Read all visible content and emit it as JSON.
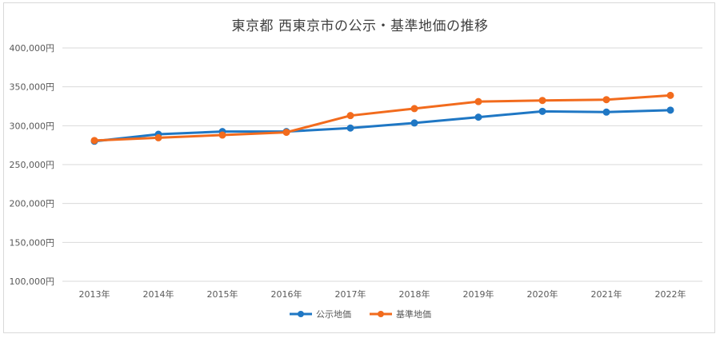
{
  "chart_data": {
    "type": "line",
    "title": "東京都 西東京市の公示・基準地価の推移",
    "categories": [
      "2013年",
      "2014年",
      "2015年",
      "2016年",
      "2017年",
      "2018年",
      "2019年",
      "2020年",
      "2021年",
      "2022年"
    ],
    "y_ticks": [
      "100,000円",
      "150,000円",
      "200,000円",
      "250,000円",
      "300,000円",
      "350,000円",
      "400,000円"
    ],
    "ylim": [
      100000,
      400000
    ],
    "grid": true,
    "legend_position": "bottom",
    "series": [
      {
        "name": "公示地価",
        "color": "#1f77c4",
        "values": [
          280000,
          289000,
          292500,
          292500,
          297000,
          303500,
          311000,
          318500,
          317500,
          320000
        ]
      },
      {
        "name": "基準地価",
        "color": "#f26b1d",
        "values": [
          281000,
          284500,
          288000,
          291500,
          313000,
          322000,
          331000,
          332500,
          333500,
          339000
        ]
      }
    ]
  }
}
